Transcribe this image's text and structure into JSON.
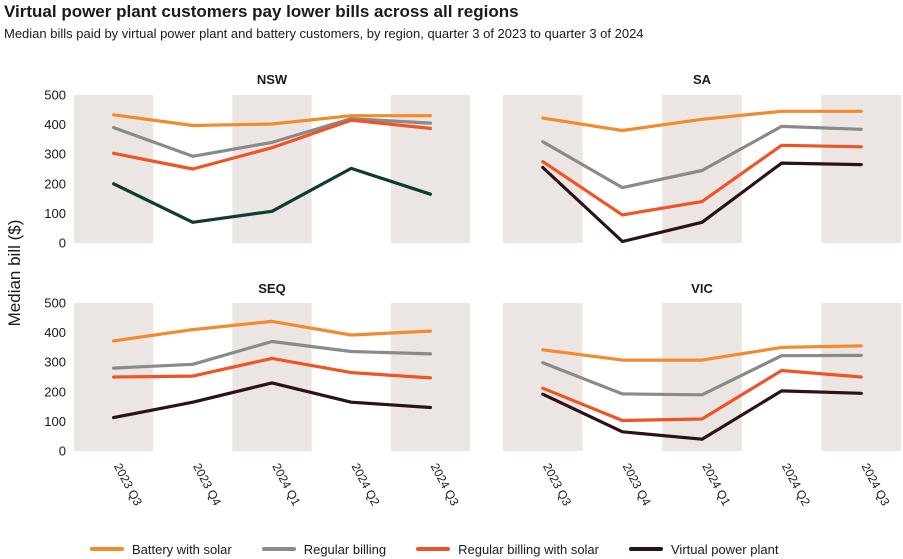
{
  "title": "Virtual power plant customers pay lower bills across all regions",
  "subtitle": "Median bills paid by virtual power plant and battery customers, by region, quarter 3 of 2023 to quarter 3 of 2024",
  "chart_data": {
    "type": "line",
    "ylabel": "Median bill ($)",
    "ylim": [
      0,
      500
    ],
    "yticks": [
      0,
      100,
      200,
      300,
      400,
      500
    ],
    "categories": [
      "2023 Q3",
      "2023 Q4",
      "2024 Q1",
      "2024 Q2",
      "2024 Q3"
    ],
    "colors": {
      "Battery with solar": "#f28a2e",
      "Regular billing": "#8a8a8a",
      "Regular billing with solar": "#ee5524",
      "Virtual power plant nsw": "#0f3b34",
      "Virtual power plant": "#2b1119",
      "band": "#ebe6e3"
    },
    "legend": [
      "Battery with solar",
      "Regular billing",
      "Regular billing with solar",
      "Virtual power plant"
    ],
    "panels": [
      {
        "title": "NSW",
        "series": [
          {
            "name": "Battery with solar",
            "values": [
              433,
              397,
              402,
              430,
              430
            ]
          },
          {
            "name": "Regular billing",
            "values": [
              390,
              293,
              340,
              420,
              405
            ]
          },
          {
            "name": "Regular billing with solar",
            "values": [
              303,
              250,
              322,
              415,
              387
            ]
          },
          {
            "name": "Virtual power plant",
            "values": [
              200,
              70,
              107,
              252,
              165
            ]
          }
        ]
      },
      {
        "title": "SA",
        "series": [
          {
            "name": "Battery with solar",
            "values": [
              422,
              380,
              418,
              445,
              445
            ]
          },
          {
            "name": "Regular billing",
            "values": [
              342,
              187,
              245,
              394,
              384
            ]
          },
          {
            "name": "Regular billing with solar",
            "values": [
              275,
              95,
              140,
              330,
              325
            ]
          },
          {
            "name": "Virtual power plant",
            "values": [
              255,
              5,
              70,
              270,
              265
            ]
          }
        ]
      },
      {
        "title": "SEQ",
        "series": [
          {
            "name": "Battery with solar",
            "values": [
              372,
              410,
              438,
              392,
              405
            ]
          },
          {
            "name": "Regular billing",
            "values": [
              280,
              293,
              370,
              336,
              328
            ]
          },
          {
            "name": "Regular billing with solar",
            "values": [
              250,
              253,
              313,
              265,
              247
            ]
          },
          {
            "name": "Virtual power plant",
            "values": [
              113,
              165,
              230,
              165,
              147
            ]
          }
        ]
      },
      {
        "title": "VIC",
        "series": [
          {
            "name": "Battery with solar",
            "values": [
              342,
              307,
              307,
              350,
              355
            ]
          },
          {
            "name": "Regular billing",
            "values": [
              298,
              193,
              190,
              322,
              323
            ]
          },
          {
            "name": "Regular billing with solar",
            "values": [
              212,
              103,
              108,
              272,
              250
            ]
          },
          {
            "name": "Virtual power plant",
            "values": [
              192,
              65,
              40,
              203,
              195
            ]
          }
        ]
      }
    ]
  }
}
